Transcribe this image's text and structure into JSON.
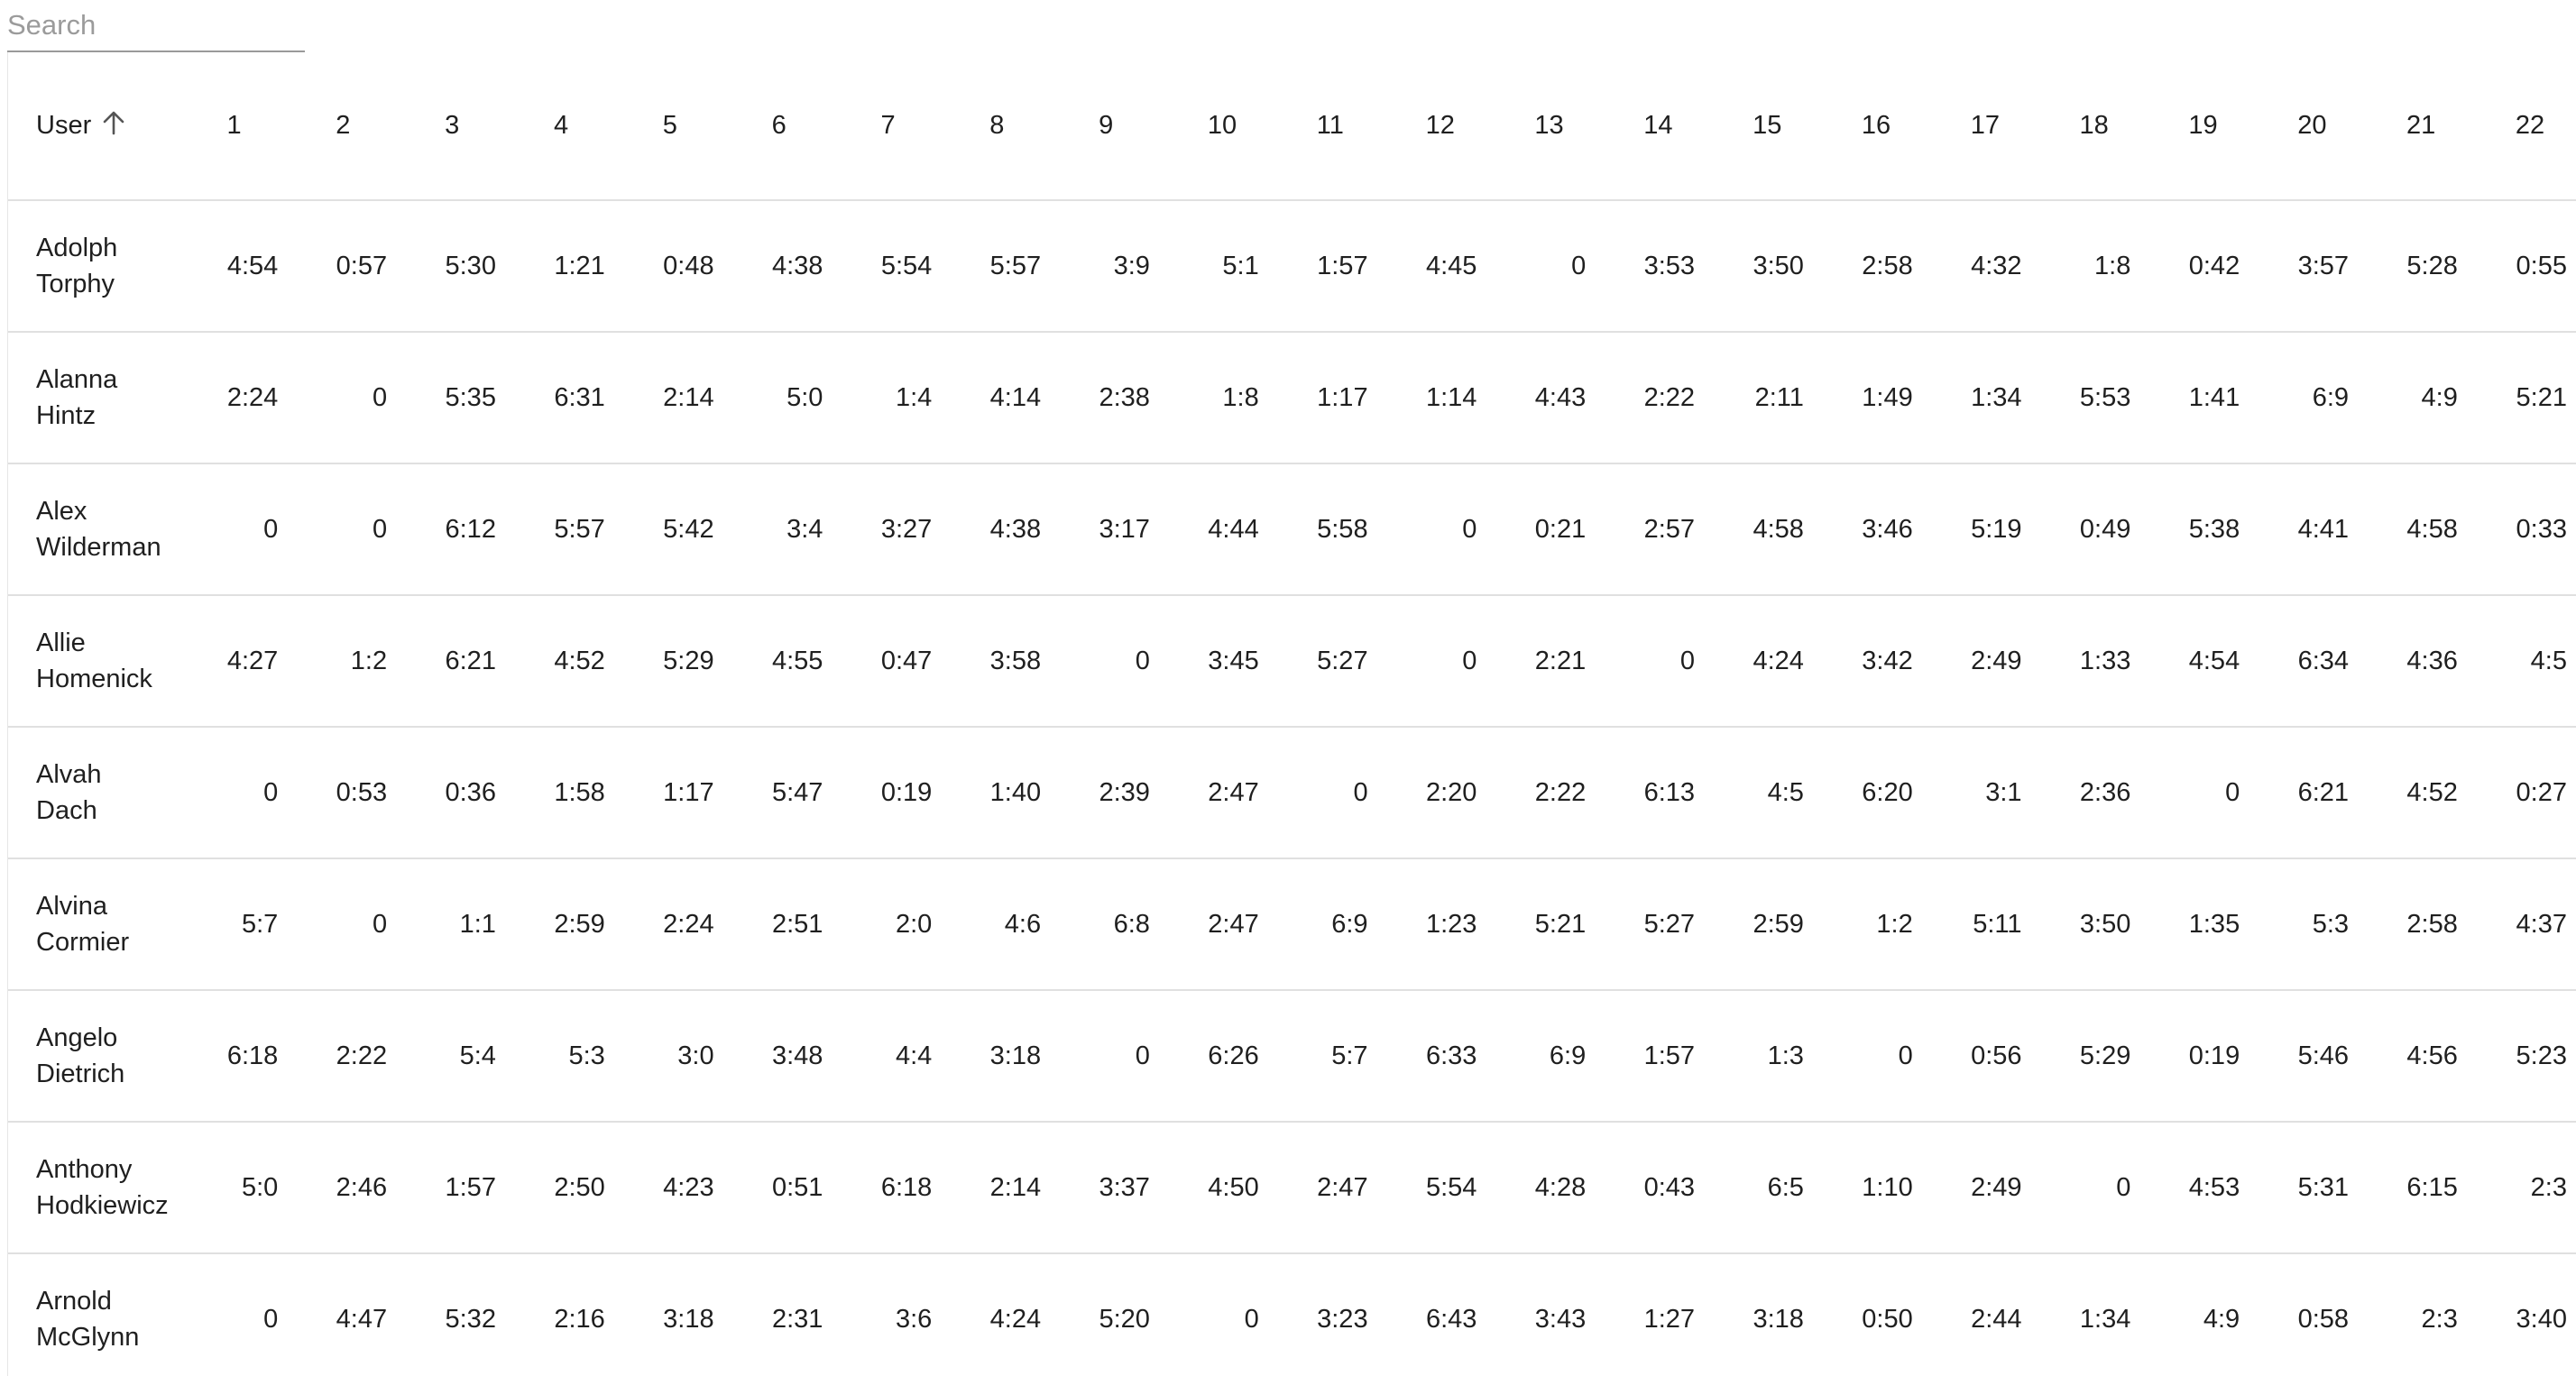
{
  "search": {
    "placeholder": "Search",
    "value": ""
  },
  "table": {
    "user_header": "User",
    "columns": [
      "1",
      "2",
      "3",
      "4",
      "5",
      "6",
      "7",
      "8",
      "9",
      "10",
      "11",
      "12",
      "13",
      "14",
      "15",
      "16",
      "17",
      "18",
      "19",
      "20",
      "21",
      "22"
    ],
    "rows": [
      {
        "first": "Adolph",
        "last": "Torphy",
        "values": [
          "4:54",
          "0:57",
          "5:30",
          "1:21",
          "0:48",
          "4:38",
          "5:54",
          "5:57",
          "3:9",
          "5:1",
          "1:57",
          "4:45",
          "0",
          "3:53",
          "3:50",
          "2:58",
          "4:32",
          "1:8",
          "0:42",
          "3:57",
          "5:28",
          "0:55"
        ]
      },
      {
        "first": "Alanna",
        "last": "Hintz",
        "values": [
          "2:24",
          "0",
          "5:35",
          "6:31",
          "2:14",
          "5:0",
          "1:4",
          "4:14",
          "2:38",
          "1:8",
          "1:17",
          "1:14",
          "4:43",
          "2:22",
          "2:11",
          "1:49",
          "1:34",
          "5:53",
          "1:41",
          "6:9",
          "4:9",
          "5:21"
        ]
      },
      {
        "first": "Alex",
        "last": "Wilderman",
        "values": [
          "0",
          "0",
          "6:12",
          "5:57",
          "5:42",
          "3:4",
          "3:27",
          "4:38",
          "3:17",
          "4:44",
          "5:58",
          "0",
          "0:21",
          "2:57",
          "4:58",
          "3:46",
          "5:19",
          "0:49",
          "5:38",
          "4:41",
          "4:58",
          "0:33"
        ]
      },
      {
        "first": "Allie",
        "last": "Homenick",
        "values": [
          "4:27",
          "1:2",
          "6:21",
          "4:52",
          "5:29",
          "4:55",
          "0:47",
          "3:58",
          "0",
          "3:45",
          "5:27",
          "0",
          "2:21",
          "0",
          "4:24",
          "3:42",
          "2:49",
          "1:33",
          "4:54",
          "6:34",
          "4:36",
          "4:5"
        ]
      },
      {
        "first": "Alvah",
        "last": "Dach",
        "values": [
          "0",
          "0:53",
          "0:36",
          "1:58",
          "1:17",
          "5:47",
          "0:19",
          "1:40",
          "2:39",
          "2:47",
          "0",
          "2:20",
          "2:22",
          "6:13",
          "4:5",
          "6:20",
          "3:1",
          "2:36",
          "0",
          "6:21",
          "4:52",
          "0:27"
        ]
      },
      {
        "first": "Alvina",
        "last": "Cormier",
        "values": [
          "5:7",
          "0",
          "1:1",
          "2:59",
          "2:24",
          "2:51",
          "2:0",
          "4:6",
          "6:8",
          "2:47",
          "6:9",
          "1:23",
          "5:21",
          "5:27",
          "2:59",
          "1:2",
          "5:11",
          "3:50",
          "1:35",
          "5:3",
          "2:58",
          "4:37"
        ]
      },
      {
        "first": "Angelo",
        "last": "Dietrich",
        "values": [
          "6:18",
          "2:22",
          "5:4",
          "5:3",
          "3:0",
          "3:48",
          "4:4",
          "3:18",
          "0",
          "6:26",
          "5:7",
          "6:33",
          "6:9",
          "1:57",
          "1:3",
          "0",
          "0:56",
          "5:29",
          "0:19",
          "5:46",
          "4:56",
          "5:23"
        ]
      },
      {
        "first": "Anthony",
        "last": "Hodkiewicz",
        "values": [
          "5:0",
          "2:46",
          "1:57",
          "2:50",
          "4:23",
          "0:51",
          "6:18",
          "2:14",
          "3:37",
          "4:50",
          "2:47",
          "5:54",
          "4:28",
          "0:43",
          "6:5",
          "1:10",
          "2:49",
          "0",
          "4:53",
          "5:31",
          "6:15",
          "2:3"
        ]
      },
      {
        "first": "Arnold",
        "last": "McGlynn",
        "values": [
          "0",
          "4:47",
          "5:32",
          "2:16",
          "3:18",
          "2:31",
          "3:6",
          "4:24",
          "5:20",
          "0",
          "3:23",
          "6:43",
          "3:43",
          "1:27",
          "3:18",
          "0:50",
          "2:44",
          "1:34",
          "4:9",
          "0:58",
          "2:3",
          "3:40"
        ]
      }
    ]
  },
  "icons": {
    "sort": "arrow-up-icon"
  }
}
